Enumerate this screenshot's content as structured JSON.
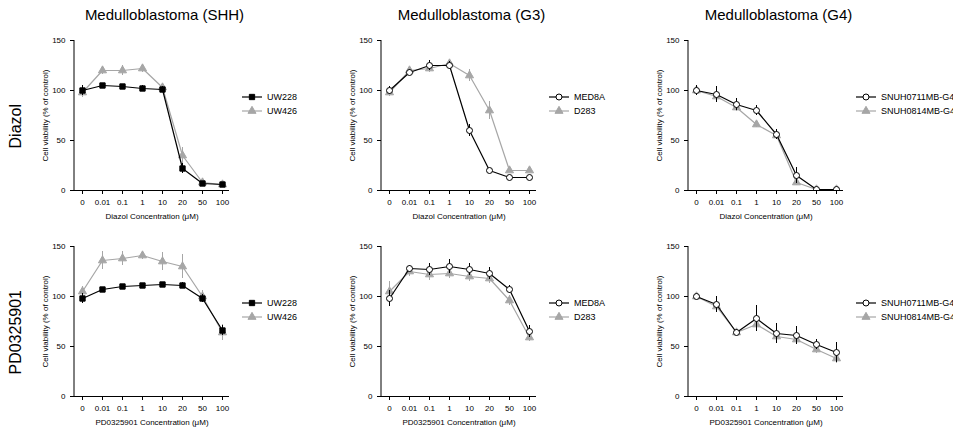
{
  "column_titles": [
    "Medulloblastoma (SHH)",
    "Medulloblastoma (G3)",
    "Medulloblastoma (G4)"
  ],
  "row_labels": [
    "Diazol",
    "PD0325901"
  ],
  "chart_data": [
    {
      "type": "line",
      "x_label": "Diazol Concentration (μM)",
      "y_label": "Cell viability (% of control)",
      "categories": [
        "0",
        "0.01",
        "0.1",
        "1",
        "10",
        "20",
        "50",
        "100"
      ],
      "ylim": [
        0,
        150
      ],
      "yticks": [
        0,
        50,
        100,
        150
      ],
      "legend": "right",
      "series": [
        {
          "name": "UW228",
          "color": "#000000",
          "marker": "square",
          "values": [
            100,
            105,
            104,
            102,
            101,
            22,
            7,
            6
          ],
          "errors": [
            5,
            2,
            2,
            3,
            3,
            5,
            2,
            1
          ]
        },
        {
          "name": "UW426",
          "color": "#a6a6a6",
          "marker": "triangle",
          "values": [
            98,
            120,
            120,
            122,
            103,
            35,
            8,
            6
          ],
          "errors": [
            5,
            4,
            5,
            4,
            3,
            8,
            2,
            1
          ]
        }
      ]
    },
    {
      "type": "line",
      "x_label": "Diazol Concentration (μM)",
      "y_label": "Cell viability (% of control)",
      "categories": [
        "0",
        "0.01",
        "0.1",
        "1",
        "10",
        "20",
        "50",
        "100"
      ],
      "ylim": [
        0,
        150
      ],
      "yticks": [
        0,
        50,
        100,
        150
      ],
      "legend": "right",
      "series": [
        {
          "name": "MED8A",
          "color": "#000000",
          "marker": "open_circle",
          "values": [
            100,
            118,
            125,
            125,
            60,
            20,
            13,
            13
          ],
          "errors": [
            4,
            3,
            5,
            4,
            6,
            2,
            1,
            1
          ]
        },
        {
          "name": "D283",
          "color": "#a6a6a6",
          "marker": "triangle",
          "values": [
            98,
            120,
            122,
            127,
            115,
            80,
            20,
            20
          ],
          "errors": [
            4,
            3,
            4,
            3,
            6,
            9,
            2,
            2
          ]
        }
      ]
    },
    {
      "type": "line",
      "x_label": "Diazol Concentration (μM)",
      "y_label": "Cell viability (% of control)",
      "categories": [
        "0",
        "0.01",
        "0.1",
        "1",
        "10",
        "20",
        "50",
        "100"
      ],
      "ylim": [
        0,
        150
      ],
      "yticks": [
        0,
        50,
        100,
        150
      ],
      "legend": "right",
      "series": [
        {
          "name": "SNUH0711MB-G4",
          "color": "#000000",
          "marker": "open_circle",
          "values": [
            100,
            96,
            86,
            80,
            56,
            15,
            1,
            1
          ],
          "errors": [
            5,
            8,
            6,
            5,
            5,
            8,
            1,
            1
          ]
        },
        {
          "name": "SNUH0814MB-G4",
          "color": "#a6a6a6",
          "marker": "triangle",
          "values": [
            100,
            94,
            83,
            66,
            55,
            8,
            1,
            1
          ],
          "errors": [
            4,
            5,
            4,
            3,
            4,
            3,
            1,
            1
          ]
        }
      ]
    },
    {
      "type": "line",
      "x_label": "PD0325901 Concentration (μM)",
      "y_label": "Cell viability (% of control)",
      "categories": [
        "0",
        "0.01",
        "0.1",
        "1",
        "10",
        "20",
        "50",
        "100"
      ],
      "ylim": [
        0,
        150
      ],
      "yticks": [
        0,
        50,
        100,
        150
      ],
      "legend": "right",
      "series": [
        {
          "name": "UW228",
          "color": "#000000",
          "marker": "square",
          "values": [
            98,
            107,
            110,
            111,
            112,
            111,
            98,
            66
          ],
          "errors": [
            5,
            2,
            2,
            2,
            2,
            3,
            4,
            5
          ]
        },
        {
          "name": "UW426",
          "color": "#a6a6a6",
          "marker": "triangle",
          "values": [
            105,
            136,
            138,
            141,
            135,
            130,
            100,
            64
          ],
          "errors": [
            5,
            9,
            7,
            4,
            9,
            12,
            6,
            8
          ]
        }
      ]
    },
    {
      "type": "line",
      "x_label": "PD0325901 Concentration (μM)",
      "y_label": "Cell viability (% of control)",
      "categories": [
        "0",
        "0.01",
        "0.1",
        "1",
        "10",
        "20",
        "50",
        "100"
      ],
      "ylim": [
        0,
        150
      ],
      "yticks": [
        0,
        50,
        100,
        150
      ],
      "legend": "right",
      "series": [
        {
          "name": "MED8A",
          "color": "#000000",
          "marker": "open_circle",
          "values": [
            98,
            128,
            127,
            130,
            127,
            123,
            107,
            65
          ],
          "errors": [
            8,
            3,
            6,
            7,
            6,
            6,
            4,
            6
          ]
        },
        {
          "name": "D283",
          "color": "#a6a6a6",
          "marker": "triangle",
          "values": [
            105,
            125,
            122,
            123,
            120,
            118,
            96,
            59
          ],
          "errors": [
            10,
            5,
            6,
            5,
            5,
            5,
            5,
            4
          ]
        }
      ]
    },
    {
      "type": "line",
      "x_label": "PD0325901 Concentration (μM)",
      "y_label": "Cell viability (% of control)",
      "categories": [
        "0",
        "0.01",
        "0.1",
        "1",
        "10",
        "20",
        "50",
        "100"
      ],
      "ylim": [
        0,
        150
      ],
      "yticks": [
        0,
        50,
        100,
        150
      ],
      "legend": "right",
      "series": [
        {
          "name": "SNUH0711MB-G4",
          "color": "#000000",
          "marker": "open_circle",
          "values": [
            100,
            92,
            64,
            78,
            63,
            61,
            52,
            44
          ],
          "errors": [
            2,
            8,
            3,
            13,
            10,
            9,
            5,
            10
          ]
        },
        {
          "name": "SNUH0814MB-G4",
          "color": "#a6a6a6",
          "marker": "triangle",
          "values": [
            100,
            90,
            64,
            72,
            60,
            57,
            47,
            38
          ],
          "errors": [
            2,
            6,
            3,
            4,
            4,
            4,
            4,
            5
          ]
        }
      ]
    }
  ]
}
